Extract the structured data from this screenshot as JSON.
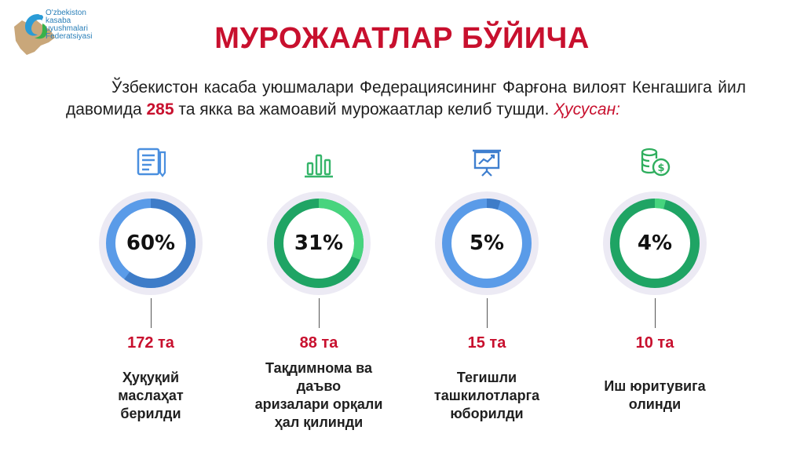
{
  "logo": {
    "lines": [
      "O'zbekiston",
      "kasaba",
      "uyushmalari",
      "Federatsiyasi"
    ]
  },
  "title": "МУРОЖААТЛАР БЎЙИЧА",
  "intro": {
    "text_before": "Ўзбекистон касаба уюшмалари Федерациясининг Фарғона вилоят Кенгашига йил давомида",
    "number": "285",
    "text_after": "та якка ва жамоавий мурожаатлар келиб тушди.",
    "emphasis": "Ҳусусан:"
  },
  "colors": {
    "accent_red": "#c8102e",
    "blue": "#5a9be8",
    "blue_dark": "#3e7cc8",
    "green": "#1fa464",
    "green_light": "#47d47e",
    "ring_bg": "#eceaf4"
  },
  "stats": [
    {
      "icon": "document-icon",
      "percent": "60%",
      "value": 60,
      "count": "172 та",
      "desc_lines": [
        "Ҳуқуқий",
        "маслаҳат",
        "берилди"
      ],
      "color": "blue"
    },
    {
      "icon": "bar-chart-icon",
      "percent": "31%",
      "value": 31,
      "count": "88 та",
      "desc_lines": [
        "Тақдимнома ва",
        "даъво",
        "аризалари орқали",
        "ҳал қилинди"
      ],
      "color": "green"
    },
    {
      "icon": "presentation-board-icon",
      "percent": "5%",
      "value": 5,
      "count": "15 та",
      "desc_lines": [
        "Тегишли",
        "ташкилотларга",
        "юборилди"
      ],
      "color": "blue"
    },
    {
      "icon": "coins-icon",
      "percent": "4%",
      "value": 4,
      "count": "10 та",
      "desc_lines": [
        "Иш юритувига",
        "олинди"
      ],
      "color": "green"
    }
  ]
}
